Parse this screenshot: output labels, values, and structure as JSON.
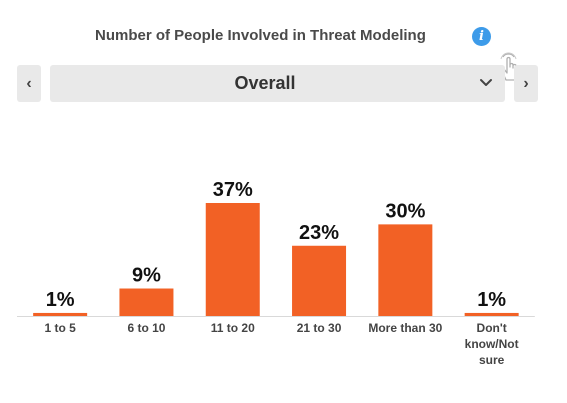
{
  "header": {
    "title": "Number of People Involved in Threat Modeling",
    "info_icon": "info-icon",
    "cursor_icon": "hand-pointer-icon"
  },
  "selector": {
    "prev_label": "‹",
    "next_label": "›",
    "selected": "Overall"
  },
  "colors": {
    "bar": "#f26125",
    "axis": "#d9d9d9",
    "info": "#3d9be9"
  },
  "chart_data": {
    "type": "bar",
    "categories": [
      "1 to 5",
      "6 to 10",
      "11 to 20",
      "21 to 30",
      "More than 30",
      "Don't know/Not sure"
    ],
    "category_lines": [
      [
        "1 to 5"
      ],
      [
        "6 to 10"
      ],
      [
        "11 to 20"
      ],
      [
        "21 to 30"
      ],
      [
        "More than 30"
      ],
      [
        "Don't",
        "know/Not",
        "sure"
      ]
    ],
    "values": [
      1,
      9,
      37,
      23,
      30,
      1
    ],
    "value_labels": [
      "1%",
      "9%",
      "37%",
      "23%",
      "30%",
      "1%"
    ],
    "unit": "%",
    "title": "Number of People Involved in Threat Modeling",
    "xlabel": "",
    "ylabel": "",
    "ylim": [
      0,
      40
    ],
    "grid": false,
    "legend": "none"
  }
}
